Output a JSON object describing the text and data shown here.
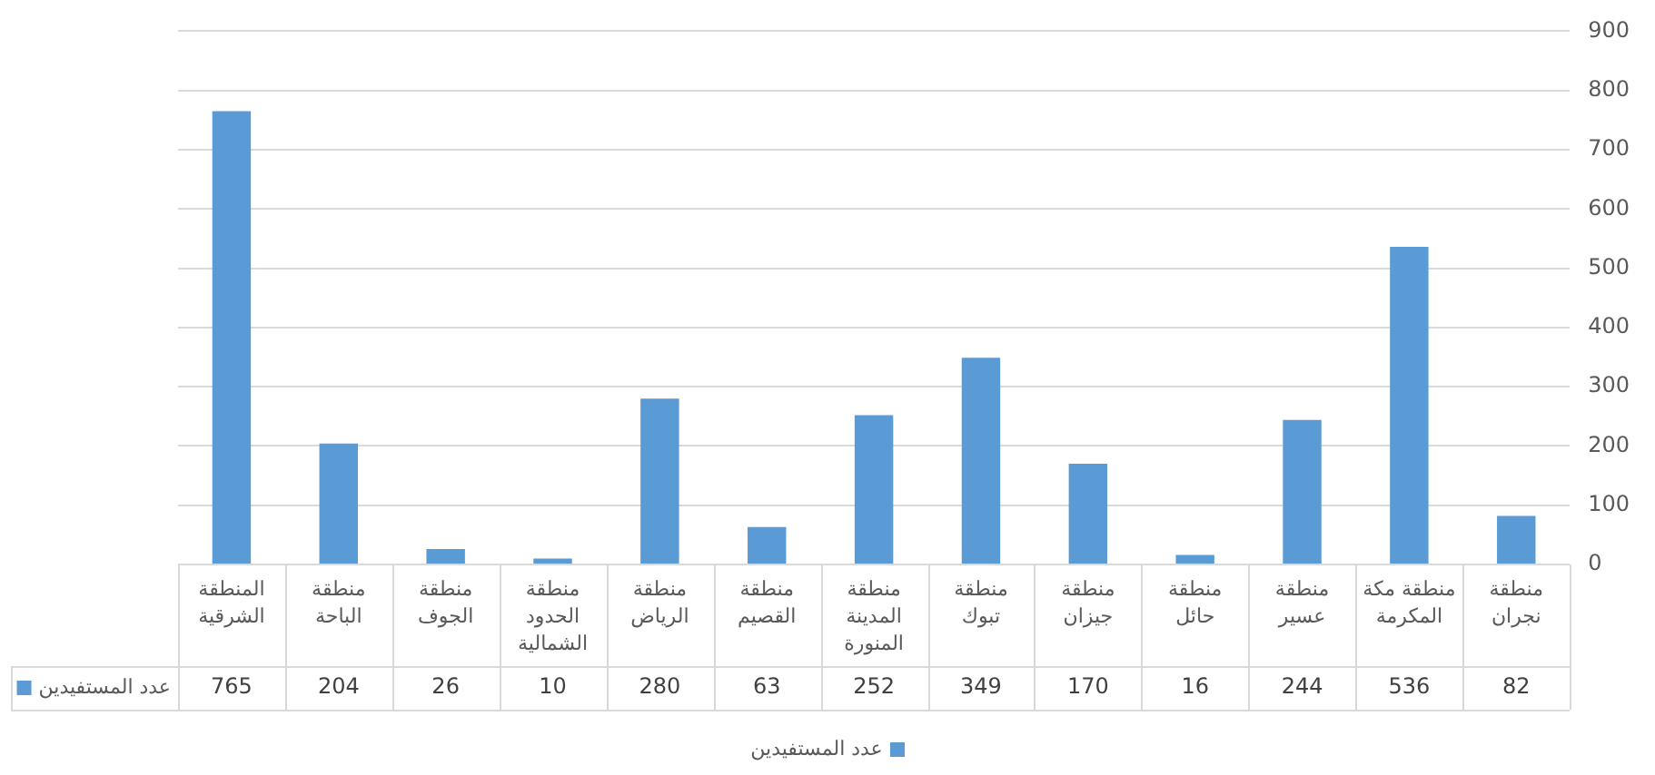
{
  "chart_data": {
    "type": "bar",
    "categories": [
      "المنطقة الشرقية",
      "منطقة الباحة",
      "منطقة الجوف",
      "منطقة الحدود الشمالية",
      "منطقة الرياض",
      "منطقة القصيم",
      "منطقة المدينة المنورة",
      "منطقة تبوك",
      "منطقة جيزان",
      "منطقة حائل",
      "منطقة عسير",
      "منطقة مكة المكرمة",
      "منطقة نجران"
    ],
    "series": [
      {
        "name": "عدد المستفيدين",
        "color": "#5b9bd5",
        "values": [
          765,
          204,
          26,
          10,
          280,
          63,
          252,
          349,
          170,
          16,
          244,
          536,
          82
        ]
      }
    ],
    "ylim": [
      0,
      900
    ],
    "yticks": [
      0,
      100,
      200,
      300,
      400,
      500,
      600,
      700,
      800,
      900
    ],
    "grid": "y",
    "legend": "bottom",
    "data_labels": true
  }
}
